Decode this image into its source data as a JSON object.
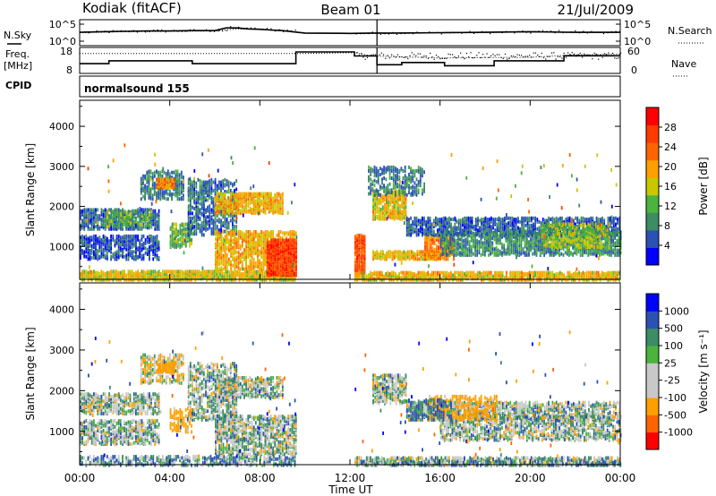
{
  "header": {
    "station": "Kodiak (fitACF)",
    "beam": "Beam 01",
    "date": "21/Jul/2009"
  },
  "left_labels": {
    "nsky": "N.Sky",
    "freq": "Freq.",
    "mhz": "[MHz]",
    "cpid": "CPID"
  },
  "right_labels": {
    "nsearch": "N.Search",
    "nave": "Nave"
  },
  "cpid_text": "normalsound 155",
  "colors": {
    "power": [
      "#0000ff",
      "#2a52b4",
      "#3c8c64",
      "#4ab43c",
      "#c8c800",
      "#ffa000",
      "#ff6400",
      "#ff3c00",
      "#ff0000"
    ],
    "velocity": [
      "#ff0000",
      "#ff6400",
      "#ffa000",
      "#c8c8c8",
      "#c8c8c8",
      "#4ab43c",
      "#3c8c64",
      "#2a52b4",
      "#0000ff"
    ]
  },
  "chart_data": [
    {
      "type": "line",
      "name": "nsky-nsearch",
      "x_unit": "hours UT",
      "left_ticks": [
        "10^5",
        "10^0"
      ],
      "right_ticks": [
        "10^5",
        "10^0"
      ],
      "sky_log": [
        [
          0,
          2.6
        ],
        [
          1,
          2.8
        ],
        [
          2,
          2.9
        ],
        [
          3,
          3.0
        ],
        [
          4,
          3.0
        ],
        [
          5,
          3.1
        ],
        [
          6,
          3.1
        ],
        [
          6.5,
          3.9
        ],
        [
          7,
          3.9
        ],
        [
          7.5,
          3.6
        ],
        [
          8,
          3.5
        ],
        [
          8.5,
          3.3
        ],
        [
          9,
          3.1
        ],
        [
          10,
          2.4
        ],
        [
          12,
          2.3
        ],
        [
          13,
          2.4
        ],
        [
          14,
          2.4
        ],
        [
          16,
          2.5
        ],
        [
          18,
          2.6
        ],
        [
          20,
          2.8
        ],
        [
          22,
          2.6
        ],
        [
          24,
          2.6
        ]
      ],
      "search_log": [
        [
          0,
          2.5
        ],
        [
          2,
          2.8
        ],
        [
          4,
          2.9
        ],
        [
          6,
          3.0
        ],
        [
          7,
          3.6
        ],
        [
          8,
          3.4
        ],
        [
          9,
          3.0
        ],
        [
          10,
          2.3
        ],
        [
          12,
          2.2
        ],
        [
          14,
          2.3
        ],
        [
          16,
          2.4
        ],
        [
          18,
          2.5
        ],
        [
          20,
          2.7
        ],
        [
          22,
          2.5
        ],
        [
          24,
          2.5
        ]
      ]
    },
    {
      "type": "line",
      "name": "freq-nave",
      "left_ticks": [
        "18",
        "8"
      ],
      "right_ticks": [
        "60",
        "0"
      ],
      "freq_mhz": [
        [
          0,
          11.3
        ],
        [
          1.3,
          11.3
        ],
        [
          1.3,
          12.8
        ],
        [
          5,
          12.8
        ],
        [
          5,
          11.3
        ],
        [
          9.6,
          11.3
        ],
        [
          9.6,
          17.5
        ],
        [
          12.2,
          17.5
        ],
        [
          12.2,
          15.4
        ],
        [
          13.2,
          15.4
        ],
        [
          13.2,
          10.7
        ],
        [
          14.3,
          10.7
        ],
        [
          14.3,
          11.9
        ],
        [
          16.2,
          11.9
        ],
        [
          16.2,
          10.2
        ],
        [
          18.4,
          10.2
        ],
        [
          18.4,
          12.8
        ],
        [
          21.5,
          12.8
        ],
        [
          21.5,
          15.5
        ],
        [
          24,
          15.5
        ]
      ],
      "nave": [
        [
          0,
          52
        ],
        [
          9.6,
          52
        ],
        [
          12.2,
          55
        ],
        [
          13,
          44
        ],
        [
          16,
          38
        ],
        [
          20,
          40
        ],
        [
          22,
          48
        ],
        [
          24,
          50
        ]
      ]
    },
    {
      "type": "heatmap",
      "name": "power",
      "xlabel": "Time UT",
      "ylabel": "Slant Range [km]",
      "x_ticks": [
        "00:00",
        "04:00",
        "08:00",
        "12:00",
        "16:00",
        "20:00",
        "00:00"
      ],
      "x_tick_hours": [
        0,
        4,
        8,
        12,
        16,
        20,
        24
      ],
      "y_ticks": [
        1000,
        2000,
        3000,
        4000
      ],
      "xlim": [
        0,
        24
      ],
      "ylim": [
        180,
        4650
      ],
      "gap_hours": [
        9.6,
        12.2
      ],
      "colorbar_label": "Power [dB]",
      "colorbar_ticks": [
        "4",
        "8",
        "12",
        "16",
        "20",
        "24",
        "28"
      ],
      "regions": [
        {
          "t": [
            0,
            9.6
          ],
          "r": [
            180,
            420
          ],
          "v": 19,
          "d": 0.75
        },
        {
          "t": [
            0,
            3.5
          ],
          "r": [
            1450,
            1950
          ],
          "v": 7,
          "d": 0.55
        },
        {
          "t": [
            0,
            3.5
          ],
          "r": [
            700,
            1300
          ],
          "v": 6,
          "d": 0.5
        },
        {
          "t": [
            1.2,
            3.2
          ],
          "r": [
            1500,
            1900
          ],
          "v": 13,
          "d": 0.4
        },
        {
          "t": [
            2.7,
            4.6
          ],
          "r": [
            2200,
            2900
          ],
          "v": 9,
          "d": 0.45
        },
        {
          "t": [
            3.4,
            4.2
          ],
          "r": [
            2480,
            2720
          ],
          "v": 24,
          "d": 0.8
        },
        {
          "t": [
            4.0,
            5.0
          ],
          "r": [
            1000,
            1600
          ],
          "v": 13,
          "d": 0.55
        },
        {
          "t": [
            4.8,
            7.0
          ],
          "r": [
            1300,
            2700
          ],
          "v": 8,
          "d": 0.4
        },
        {
          "t": [
            6.0,
            9.0
          ],
          "r": [
            1850,
            2350
          ],
          "v": 21,
          "d": 0.6
        },
        {
          "t": [
            6.0,
            9.6
          ],
          "r": [
            450,
            1400
          ],
          "v": 21,
          "d": 0.5
        },
        {
          "t": [
            8.3,
            9.6
          ],
          "r": [
            300,
            1200
          ],
          "v": 30,
          "d": 0.85
        },
        {
          "t": [
            12.2,
            12.7
          ],
          "r": [
            300,
            1300
          ],
          "v": 28,
          "d": 0.8
        },
        {
          "t": [
            12.2,
            24
          ],
          "r": [
            180,
            380
          ],
          "v": 20,
          "d": 0.7
        },
        {
          "t": [
            13.0,
            14.5
          ],
          "r": [
            1700,
            2400
          ],
          "v": 20,
          "d": 0.6
        },
        {
          "t": [
            12.8,
            15.3
          ],
          "r": [
            2300,
            3000
          ],
          "v": 9,
          "d": 0.35
        },
        {
          "t": [
            13.0,
            16.0
          ],
          "r": [
            700,
            900
          ],
          "v": 20,
          "d": 0.7
        },
        {
          "t": [
            15.3,
            16.6
          ],
          "r": [
            700,
            1300
          ],
          "v": 24,
          "d": 0.55
        },
        {
          "t": [
            14.5,
            24
          ],
          "r": [
            1300,
            1750
          ],
          "v": 7,
          "d": 0.55
        },
        {
          "t": [
            16.0,
            24
          ],
          "r": [
            800,
            1400
          ],
          "v": 10,
          "d": 0.5
        },
        {
          "t": [
            20.5,
            23.5
          ],
          "r": [
            1000,
            1600
          ],
          "v": 16,
          "d": 0.5
        }
      ]
    },
    {
      "type": "heatmap",
      "name": "velocity",
      "xlabel": "Time UT",
      "ylabel": "Slant Range [km]",
      "x_ticks": [
        "00:00",
        "04:00",
        "08:00",
        "12:00",
        "16:00",
        "20:00",
        "00:00"
      ],
      "x_tick_hours": [
        0,
        4,
        8,
        12,
        16,
        20,
        24
      ],
      "y_ticks": [
        1000,
        2000,
        3000,
        4000
      ],
      "xlim": [
        0,
        24
      ],
      "ylim": [
        180,
        4650
      ],
      "gap_hours": [
        9.6,
        12.2
      ],
      "colorbar_label": "Velocity [m s⁻¹]",
      "colorbar_ticks": [
        "-1000",
        "-500",
        "-100",
        "-25",
        "25",
        "100",
        "500",
        "1000"
      ],
      "regions": [
        {
          "t": [
            0,
            9.6
          ],
          "r": [
            180,
            420
          ],
          "v": 50,
          "d": 0.45
        },
        {
          "t": [
            0,
            3.5
          ],
          "r": [
            1450,
            1950
          ],
          "v": 0,
          "d": 0.5
        },
        {
          "t": [
            0,
            3.5
          ],
          "r": [
            700,
            1300
          ],
          "v": 0,
          "d": 0.45
        },
        {
          "t": [
            2.7,
            4.6
          ],
          "r": [
            2200,
            2900
          ],
          "v": -80,
          "d": 0.35
        },
        {
          "t": [
            3.4,
            4.2
          ],
          "r": [
            2480,
            2720
          ],
          "v": -250,
          "d": 0.7
        },
        {
          "t": [
            4.8,
            7.0
          ],
          "r": [
            1300,
            2700
          ],
          "v": 0,
          "d": 0.4
        },
        {
          "t": [
            6.0,
            9.0
          ],
          "r": [
            1850,
            2350
          ],
          "v": 0,
          "d": 0.55
        },
        {
          "t": [
            6.0,
            9.6
          ],
          "r": [
            450,
            1400
          ],
          "v": 0,
          "d": 0.5
        },
        {
          "t": [
            4.0,
            5.0
          ],
          "r": [
            1000,
            1600
          ],
          "v": -200,
          "d": 0.35
        },
        {
          "t": [
            12.2,
            24
          ],
          "r": [
            180,
            380
          ],
          "v": 0,
          "d": 0.55
        },
        {
          "t": [
            12.5,
            24
          ],
          "r": [
            180,
            300
          ],
          "v": 60,
          "d": 0.3
        },
        {
          "t": [
            13.0,
            14.5
          ],
          "r": [
            1700,
            2400
          ],
          "v": 0,
          "d": 0.5
        },
        {
          "t": [
            14.5,
            24
          ],
          "r": [
            1300,
            1750
          ],
          "v": 0,
          "d": 0.45
        },
        {
          "t": [
            16.0,
            24
          ],
          "r": [
            800,
            1400
          ],
          "v": 0,
          "d": 0.45
        },
        {
          "t": [
            15.5,
            18.5
          ],
          "r": [
            1300,
            1900
          ],
          "v": -200,
          "d": 0.35
        },
        {
          "t": [
            14.5,
            16.5
          ],
          "r": [
            1300,
            1800
          ],
          "v": 120,
          "d": 0.3
        }
      ]
    }
  ]
}
